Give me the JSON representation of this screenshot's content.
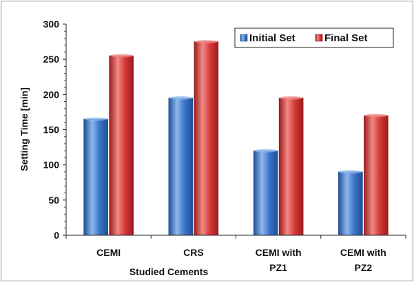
{
  "chart_data": {
    "type": "bar",
    "categories": [
      [
        "CEMI"
      ],
      [
        "CRS"
      ],
      [
        "CEMI with",
        "PZ1"
      ],
      [
        "CEMI with",
        "PZ2"
      ]
    ],
    "series": [
      {
        "name": "Initial Set",
        "values": [
          165,
          195,
          120,
          90
        ],
        "color": "#3a76c8",
        "color_dark": "#1f4f95",
        "color_light": "#8fb8ec"
      },
      {
        "name": "Final Set",
        "values": [
          255,
          275,
          195,
          170
        ],
        "color": "#d63a38",
        "color_dark": "#9c1c1c",
        "color_light": "#f08a86"
      }
    ],
    "xlabel": "Studied Cements",
    "ylabel": "Setting Time [min]",
    "ylim": [
      0,
      300
    ],
    "yticks": [
      0,
      50,
      100,
      150,
      200,
      250,
      300
    ],
    "grid": false,
    "legend_position": "top-right"
  }
}
